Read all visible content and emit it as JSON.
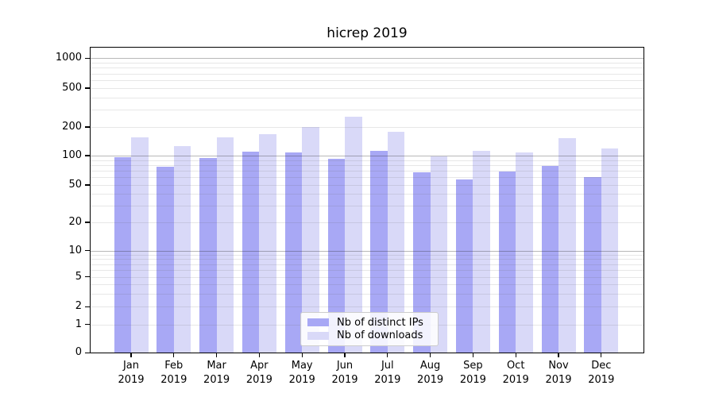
{
  "title": "hicrep 2019",
  "chart_data": {
    "type": "bar",
    "title": "hicrep 2019",
    "categories": [
      "Jan 2019",
      "Feb 2019",
      "Mar 2019",
      "Apr 2019",
      "May 2019",
      "Jun 2019",
      "Jul 2019",
      "Aug 2019",
      "Sep 2019",
      "Oct 2019",
      "Nov 2019",
      "Dec 2019"
    ],
    "series": [
      {
        "name": "Nb of distinct IPs",
        "color": "#a8a8f5",
        "values": [
          97,
          77,
          94,
          111,
          109,
          93,
          112,
          68,
          57,
          69,
          78,
          60
        ]
      },
      {
        "name": "Nb of downloads",
        "color": "#d9d9f8",
        "values": [
          155,
          127,
          155,
          167,
          201,
          256,
          177,
          99,
          112,
          108,
          152,
          119
        ]
      }
    ],
    "yscale": "symlog",
    "ylim": [
      0,
      1150
    ],
    "y_major_ticks": [
      0,
      1,
      2,
      5,
      10,
      20,
      50,
      100,
      200,
      500,
      1000
    ],
    "y_power10_gridlines": [
      10,
      100,
      1000
    ],
    "y_light_gridlines": [
      1,
      2,
      5,
      20,
      50,
      200,
      500
    ],
    "y_minor_gridlines": [
      3,
      4,
      6,
      7,
      8,
      9,
      30,
      40,
      60,
      70,
      80,
      90,
      300,
      400,
      600,
      700,
      800,
      900
    ],
    "grid": true,
    "legend_position": "lower center"
  },
  "colors": {
    "bar_distinct_ips": "#a8a8f5",
    "bar_downloads": "#d9d9f8",
    "grid_major": "#b8b8b8",
    "grid_minor": "#e8e8e8",
    "axis": "#000000",
    "text": "#000000",
    "legend_border": "#cccccc"
  }
}
